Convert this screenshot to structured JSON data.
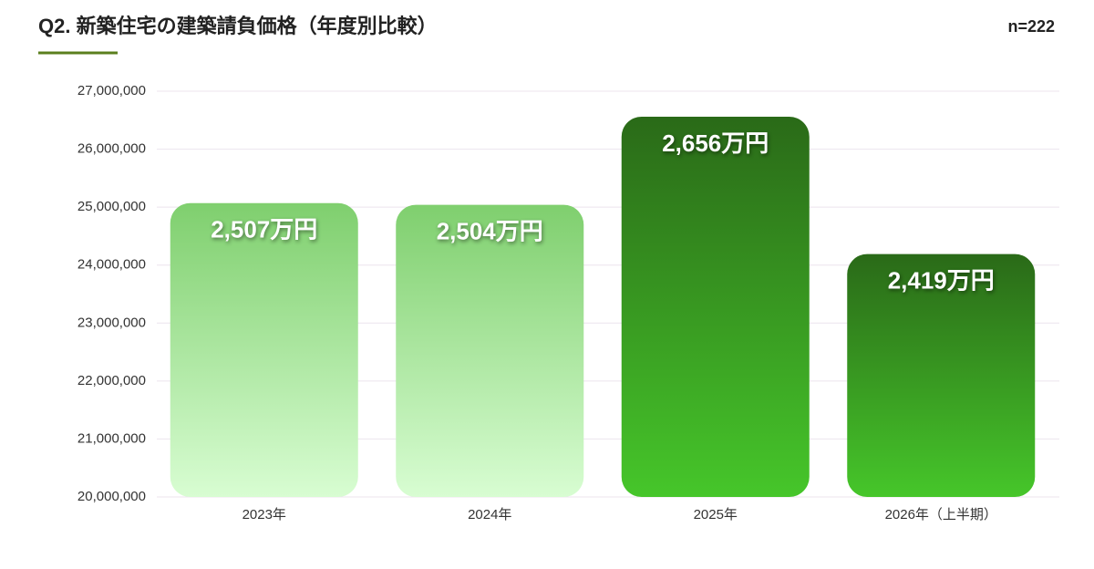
{
  "chart_data": {
    "type": "bar",
    "title": "Q2. 新築住宅の建築請負価格（年度別比較）",
    "subtitle": "n=222",
    "categories": [
      "2023年",
      "2024年",
      "2025年",
      "2026年（上半期）"
    ],
    "values": [
      25070000,
      25040000,
      26560000,
      24190000
    ],
    "value_labels": [
      "2,507万円",
      "2,504万円",
      "2,656万円",
      "2,419万円"
    ],
    "colors": [
      [
        "#7fcf6e",
        "#d8fdd2"
      ],
      [
        "#7fcf6e",
        "#d8fdd2"
      ],
      [
        "#2a6a18",
        "#46c62a"
      ],
      [
        "#2a6a18",
        "#46c62a"
      ]
    ],
    "ylim": [
      20000000,
      27000000
    ],
    "yticks": [
      {
        "value": 20000000,
        "label": "20,000,000"
      },
      {
        "value": 21000000,
        "label": "21,000,000"
      },
      {
        "value": 22000000,
        "label": "22,000,000"
      },
      {
        "value": 23000000,
        "label": "23,000,000"
      },
      {
        "value": 24000000,
        "label": "24,000,000"
      },
      {
        "value": 25000000,
        "label": "25,000,000"
      },
      {
        "value": 26000000,
        "label": "26,000,000"
      },
      {
        "value": 27000000,
        "label": "27,000,000"
      }
    ],
    "grid": true
  }
}
